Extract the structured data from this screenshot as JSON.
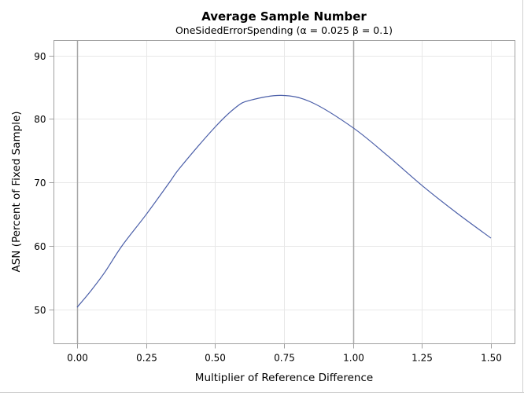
{
  "chart_data": {
    "type": "line",
    "title": "Average Sample Number",
    "subtitle": "OneSidedErrorSpending (α = 0.025  β = 0.1)",
    "xlabel": "Multiplier of Reference Difference",
    "ylabel": "ASN (Percent of Fixed Sample)",
    "xlim": [
      -0.08,
      1.58
    ],
    "ylim": [
      44.6,
      92.4
    ],
    "x_ticks": [
      0.0,
      0.25,
      0.5,
      0.75,
      1.0,
      1.25,
      1.5
    ],
    "x_tick_labels": [
      "0.00",
      "0.25",
      "0.50",
      "0.75",
      "1.00",
      "1.25",
      "1.50"
    ],
    "y_ticks": [
      50,
      60,
      70,
      80,
      90
    ],
    "y_tick_labels": [
      "50",
      "60",
      "70",
      "80",
      "90"
    ],
    "grid": true,
    "reference_lines_x": [
      0.0,
      1.0
    ],
    "legend": null,
    "series": [
      {
        "name": "ASN",
        "color": "#4a5ea8",
        "x": [
          0.0,
          0.05,
          0.1,
          0.163,
          0.25,
          0.335,
          0.375,
          0.5,
          0.575,
          0.625,
          0.74,
          0.85,
          1.0,
          1.125,
          1.25,
          1.375,
          1.5
        ],
        "y": [
          50.3,
          52.9,
          55.8,
          60.0,
          64.9,
          70.0,
          72.4,
          78.7,
          81.8,
          82.9,
          83.7,
          82.6,
          78.6,
          74.2,
          69.5,
          65.2,
          61.2
        ]
      }
    ]
  },
  "colors": {
    "frame": "#a0a0a0",
    "grid": "#e8e8e8",
    "refline": "#a8a8a8",
    "outer_border": "#c8c8c8"
  }
}
